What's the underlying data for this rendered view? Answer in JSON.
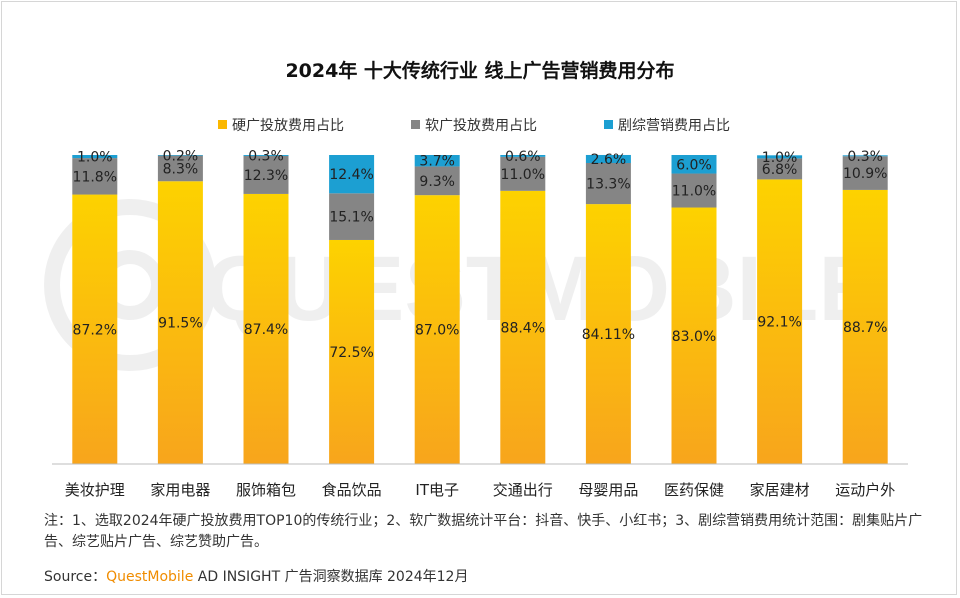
{
  "title": "2024年 十大传统行业 线上广告营销费用分布",
  "note": "注：1、选取2024年硬广投放费用TOP10的传统行业；2、软广数据统计平台：抖音、快手、小红书；3、剧综营销费用统计范围：剧集贴片广告、综艺贴片广告、综艺赞助广告。",
  "source": {
    "label": "Source：",
    "brand": "QuestMobile",
    "rest": " AD INSIGHT 广告洞察数据库 2024年12月"
  },
  "watermark": "QUESTMOBILE",
  "colors": {
    "hard": "#fbb800",
    "soft": "#858585",
    "drama": "#1c9fd2"
  },
  "chart_data": {
    "type": "bar",
    "stacked": true,
    "title": "2024年 十大传统行业 线上广告营销费用分布",
    "categories": [
      "美妆护理",
      "家用电器",
      "服饰箱包",
      "食品饮品",
      "IT电子",
      "交通出行",
      "母婴用品",
      "医药保健",
      "家居建材",
      "运动户外"
    ],
    "series": [
      {
        "name": "硬广投放费用占比",
        "values": [
          87.2,
          91.5,
          87.4,
          72.5,
          87.0,
          88.4,
          84.11,
          83.0,
          92.1,
          88.7
        ],
        "labels": [
          "87.2%",
          "91.5%",
          "87.4%",
          "72.5%",
          "87.0%",
          "88.4%",
          "84.11%",
          "83.0%",
          "92.1%",
          "88.7%"
        ]
      },
      {
        "name": "软广投放费用占比",
        "values": [
          11.8,
          8.3,
          12.3,
          15.1,
          9.3,
          11.0,
          13.3,
          11.0,
          6.8,
          10.9
        ],
        "labels": [
          "11.8%",
          "8.3%",
          "12.3%",
          "15.1%",
          "9.3%",
          "11.0%",
          "13.3%",
          "11.0%",
          "6.8%",
          "10.9%"
        ]
      },
      {
        "name": "剧综营销费用占比",
        "values": [
          1.0,
          0.2,
          0.3,
          12.4,
          3.7,
          0.6,
          2.6,
          6.0,
          1.0,
          0.3
        ],
        "labels": [
          "1.0%",
          "0.2%",
          "0.3%",
          "12.4%",
          "3.7%",
          "0.6%",
          "2.6%",
          "6.0%",
          "1.0%",
          "0.3%"
        ]
      }
    ],
    "ylim": [
      0,
      100
    ],
    "xlabel": "",
    "ylabel": "",
    "legend": "top-center",
    "grid": false
  }
}
